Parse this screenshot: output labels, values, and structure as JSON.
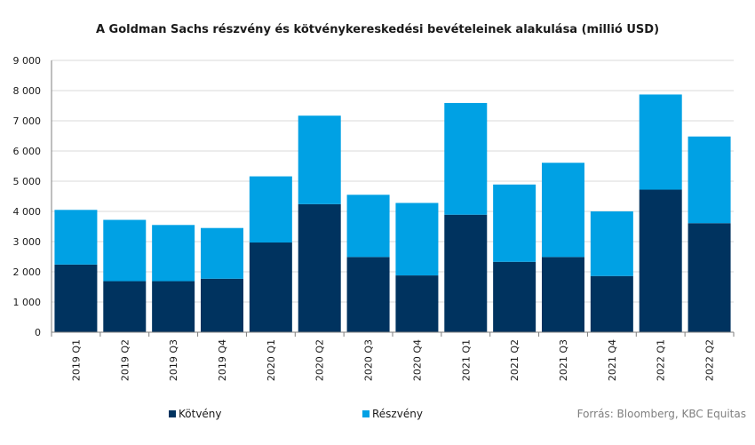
{
  "chart_data": {
    "type": "bar",
    "stacked": true,
    "title": "A Goldman Sachs részvény és kötvénykereskedési bevételeinek alakulása (millió USD)",
    "categories": [
      "2019 Q1",
      "2019 Q2",
      "2019 Q3",
      "2019 Q4",
      "2020 Q1",
      "2020 Q2",
      "2020 Q3",
      "2020 Q4",
      "2021 Q1",
      "2021 Q2",
      "2021 Q3",
      "2021 Q4",
      "2022 Q1",
      "2022 Q2"
    ],
    "series": [
      {
        "name": "Kötvény",
        "color": "#00335f",
        "values": [
          2240,
          1690,
          1690,
          1770,
          2970,
          4240,
          2490,
          1880,
          3890,
          2330,
          2490,
          1860,
          4720,
          3610
        ]
      },
      {
        "name": "Részvény",
        "color": "#00a1e4",
        "values": [
          1810,
          2030,
          1860,
          1680,
          2190,
          2930,
          2060,
          2400,
          3700,
          2560,
          3120,
          2140,
          3150,
          2870
        ]
      }
    ],
    "ylim": [
      0,
      9000
    ],
    "yticks": [
      "0",
      "1 000",
      "2 000",
      "3 000",
      "4 000",
      "5 000",
      "6 000",
      "7 000",
      "8 000",
      "9 000"
    ],
    "grid": true,
    "legend_position": "bottom",
    "source": "Forrás: Bloomberg, KBC Equitas"
  }
}
